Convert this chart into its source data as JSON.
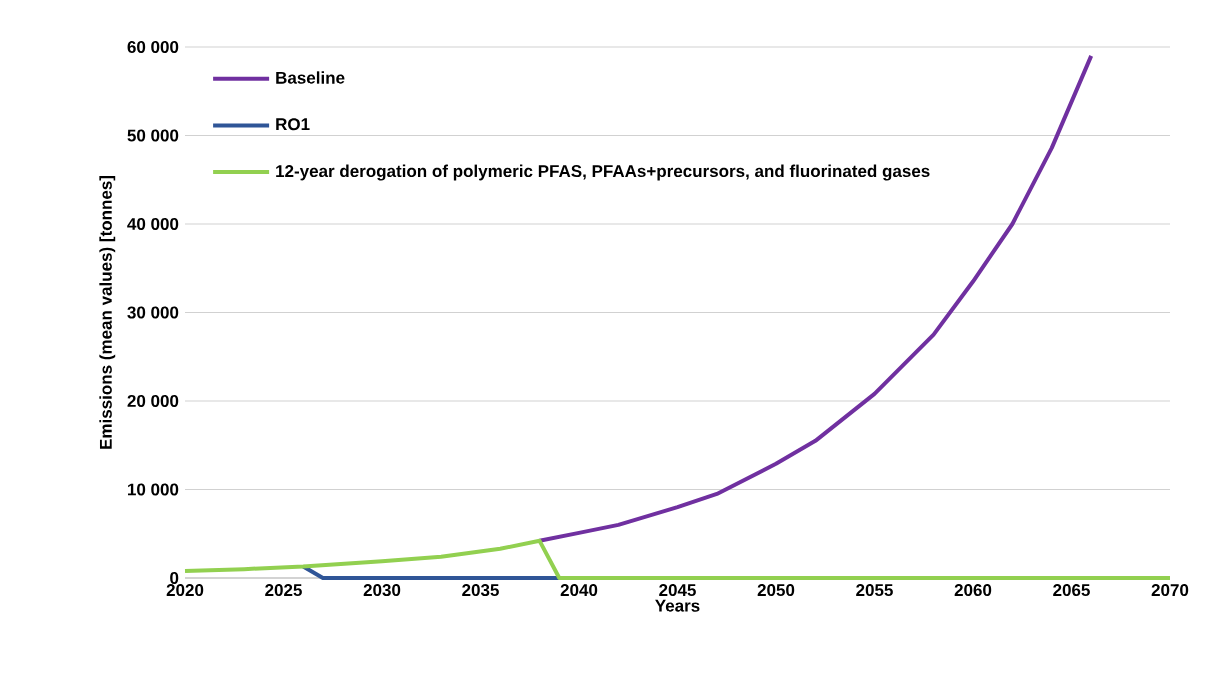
{
  "chart_data": {
    "type": "line",
    "xlabel": "Years",
    "ylabel": "Emissions (mean values) [tonnes]",
    "xlim": [
      2020,
      2070
    ],
    "xticks": [
      2020,
      2025,
      2030,
      2035,
      2040,
      2045,
      2050,
      2055,
      2060,
      2065,
      2070
    ],
    "ylim": [
      0,
      60000
    ],
    "yticks": [
      {
        "value": 0,
        "label": "0"
      },
      {
        "value": 10000,
        "label": "10 000"
      },
      {
        "value": 20000,
        "label": "20 000"
      },
      {
        "value": 30000,
        "label": "30 000"
      },
      {
        "value": 40000,
        "label": "40 000"
      },
      {
        "value": 50000,
        "label": "50 000"
      },
      {
        "value": 60000,
        "label": "60 000"
      }
    ],
    "grid": "y",
    "legend": "top left",
    "marker": "none",
    "line_style": "solid",
    "series": [
      {
        "name": "Baseline",
        "color": "#7030a0",
        "x": [
          2038,
          2040,
          2042,
          2045,
          2047,
          2050,
          2052,
          2055,
          2058,
          2060,
          2062,
          2064,
          2066
        ],
        "values": [
          4200,
          5100,
          6000,
          8000,
          9500,
          12900,
          15500,
          20800,
          27500,
          33500,
          40000,
          48600,
          59000
        ]
      },
      {
        "name": "RO1",
        "color": "#2f5597",
        "x": [
          2026,
          2027,
          2039
        ],
        "values": [
          1300,
          0,
          0
        ]
      },
      {
        "name": "12-year derogation of polymeric PFAS, PFAAs+precursors, and fluorinated gases",
        "color": "#92d050",
        "x": [
          2020,
          2023,
          2026,
          2030,
          2033,
          2036,
          2038,
          2039,
          2070
        ],
        "values": [
          800,
          1000,
          1300,
          1900,
          2400,
          3300,
          4200,
          0,
          0
        ]
      }
    ]
  }
}
